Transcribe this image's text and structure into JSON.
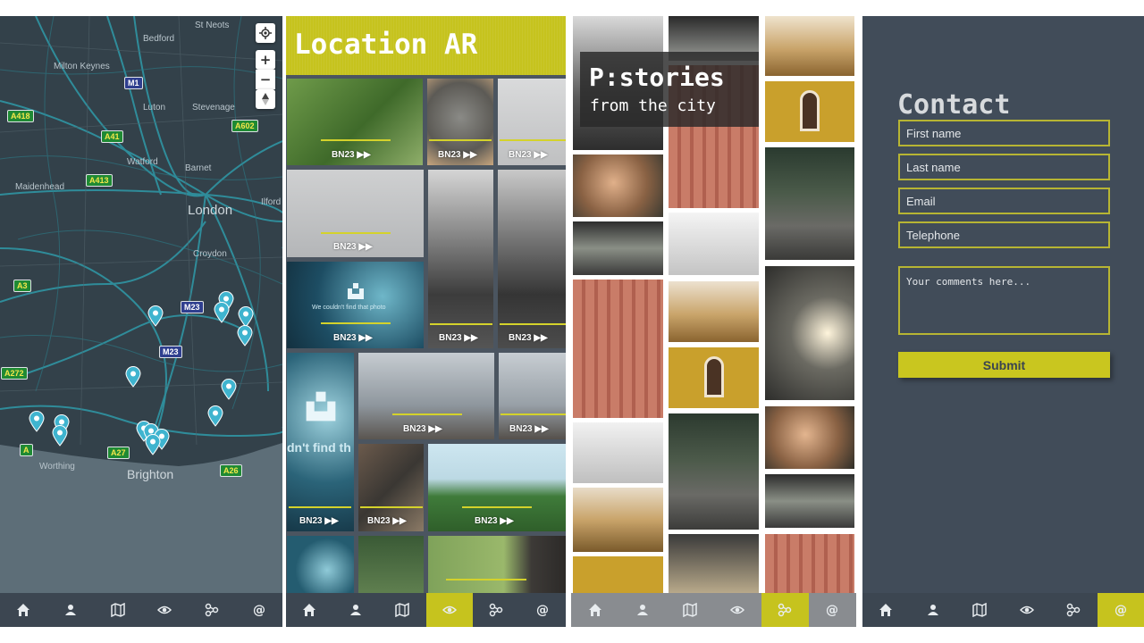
{
  "nav": {
    "items": [
      {
        "icon": "home-icon"
      },
      {
        "icon": "person-icon"
      },
      {
        "icon": "map-icon"
      },
      {
        "icon": "eye-icon"
      },
      {
        "icon": "nodes-icon"
      },
      {
        "icon": "at-icon"
      }
    ],
    "accent": "#c6c31e"
  },
  "map": {
    "places": [
      {
        "name": "St Neots"
      },
      {
        "name": "Bedford"
      },
      {
        "name": "Milton Keynes"
      },
      {
        "name": "Luton"
      },
      {
        "name": "Stevenage"
      },
      {
        "name": "Watford"
      },
      {
        "name": "Barnet"
      },
      {
        "name": "Maidenhead"
      },
      {
        "name": "London"
      },
      {
        "name": "Ilford"
      },
      {
        "name": "Croydon"
      },
      {
        "name": "Worthing"
      },
      {
        "name": "Brighton"
      }
    ],
    "roads": [
      "M1",
      "A418",
      "A602",
      "A41",
      "A413",
      "A3",
      "M23",
      "M23",
      "A272",
      "A27",
      "A26",
      "A"
    ],
    "zoom_in": "+",
    "zoom_out": "−"
  },
  "location_ar": {
    "title": "Location AR",
    "tile_label": "BN23 ▶▶",
    "not_found": "We couldn't find that photo",
    "not_found_partial": "dn't find th"
  },
  "stories": {
    "title": "P:stories",
    "subtitle": "from the city"
  },
  "contact": {
    "title": "Contact",
    "fields": {
      "first_name": "First name",
      "last_name": "Last name",
      "email": "Email",
      "telephone": "Telephone"
    },
    "comments_placeholder": "Your comments here...",
    "submit": "Submit"
  }
}
